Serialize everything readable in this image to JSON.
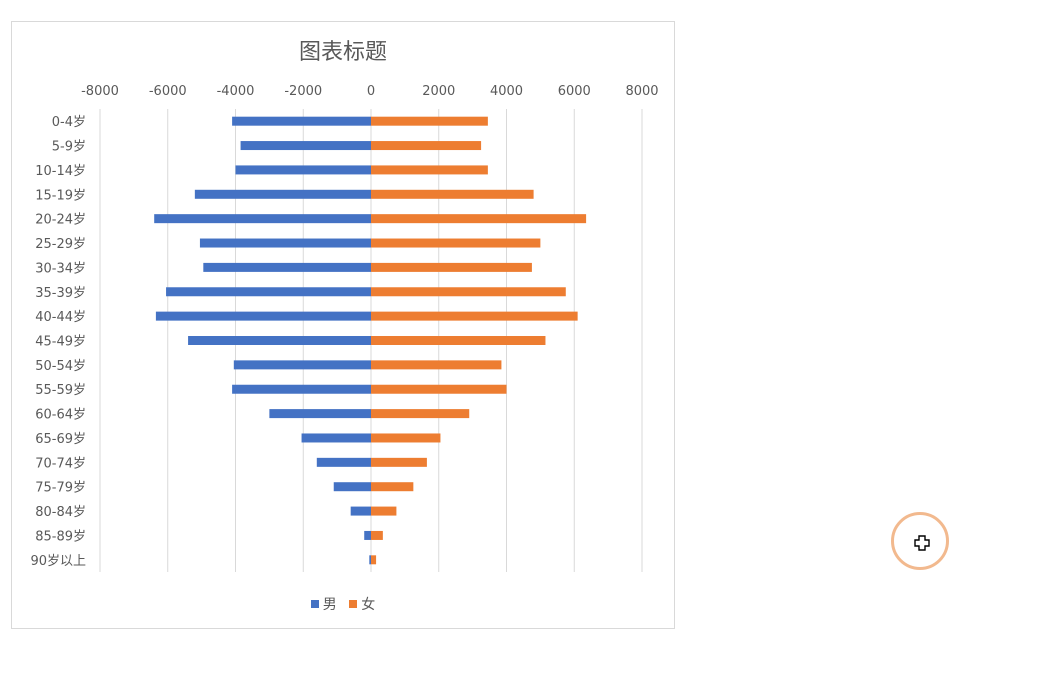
{
  "chart_data": {
    "type": "bar",
    "orientation": "horizontal",
    "title": "图表标题",
    "xlim": [
      -8000,
      8000
    ],
    "x_ticks": [
      "-8000",
      "-6000",
      "-4000",
      "-2000",
      "0",
      "2000",
      "4000",
      "6000",
      "8000"
    ],
    "x_tick_values": [
      -8000,
      -6000,
      -4000,
      -2000,
      0,
      2000,
      4000,
      6000,
      8000
    ],
    "grid": true,
    "legend_position": "bottom",
    "categories": [
      "0-4岁",
      "5-9岁",
      "10-14岁",
      "15-19岁",
      "20-24岁",
      "25-29岁",
      "30-34岁",
      "35-39岁",
      "40-44岁",
      "45-49岁",
      "50-54岁",
      "55-59岁",
      "60-64岁",
      "65-69岁",
      "70-74岁",
      "75-79岁",
      "80-84岁",
      "85-89岁",
      "90岁以上"
    ],
    "series": [
      {
        "name": "男",
        "color": "#4472c4",
        "values": [
          -4100,
          -3850,
          -4000,
          -5200,
          -6400,
          -5050,
          -4950,
          -6050,
          -6350,
          -5400,
          -4050,
          -4100,
          -3000,
          -2050,
          -1600,
          -1100,
          -600,
          -200,
          -50
        ]
      },
      {
        "name": "女",
        "color": "#ed7d31",
        "values": [
          3450,
          3250,
          3450,
          4800,
          6350,
          5000,
          4750,
          5750,
          6100,
          5150,
          3850,
          4000,
          2900,
          2050,
          1650,
          1250,
          750,
          350,
          150
        ]
      }
    ]
  }
}
